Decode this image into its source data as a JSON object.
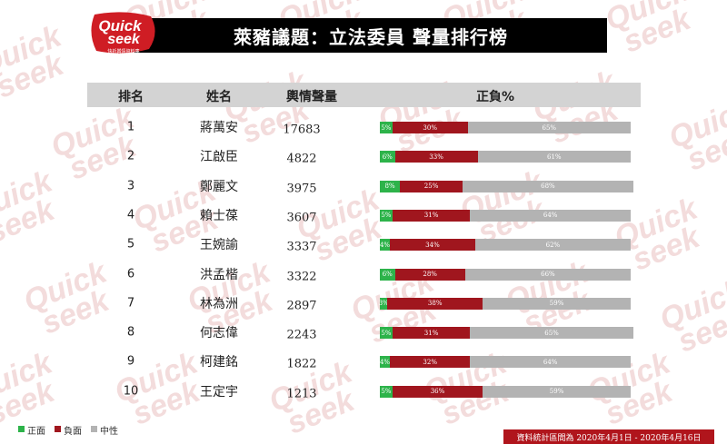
{
  "logo": {
    "top": "Quick",
    "bottom": "seek",
    "tagline": "快析輿情資料庫"
  },
  "title": "萊豬議題：立法委員 聲量排行榜",
  "headers": {
    "rank": "排名",
    "name": "姓名",
    "volume": "輿情聲量",
    "sentiment": "正負%"
  },
  "colors": {
    "positive": "#2db34a",
    "negative": "#a0161e",
    "neutral": "#b3b3b3",
    "header_bg": "#d3d3d3",
    "footer_bg": "#b0151c"
  },
  "legend": [
    {
      "label": "正面",
      "color": "#2db34a"
    },
    {
      "label": "負面",
      "color": "#a0161e"
    },
    {
      "label": "中性",
      "color": "#b3b3b3"
    }
  ],
  "footer": "資料統計區間為 2020年4月1日 - 2020年4月16日",
  "chart_data": {
    "type": "bar",
    "stacked": true,
    "normalized_percent": true,
    "categories": [
      "蔣萬安",
      "江啟臣",
      "鄭麗文",
      "賴士葆",
      "王婉諭",
      "洪孟楷",
      "林為洲",
      "何志偉",
      "柯建銘",
      "王定宇"
    ],
    "ranks": [
      "1",
      "2",
      "3",
      "4",
      "5",
      "6",
      "7",
      "8",
      "9",
      "10"
    ],
    "volume": [
      17683,
      4822,
      3975,
      3607,
      3337,
      3322,
      2897,
      2243,
      1822,
      1213
    ],
    "series": [
      {
        "name": "正面",
        "color": "#2db34a",
        "values": [
          5,
          6,
          8,
          5,
          4,
          6,
          3,
          5,
          4,
          5
        ]
      },
      {
        "name": "負面",
        "color": "#a0161e",
        "values": [
          30,
          33,
          25,
          31,
          34,
          28,
          38,
          31,
          32,
          36
        ]
      },
      {
        "name": "中性",
        "color": "#b3b3b3",
        "values": [
          65,
          61,
          68,
          64,
          62,
          66,
          59,
          65,
          64,
          59
        ]
      }
    ],
    "value_labels": [
      [
        "5%",
        "30%",
        "65%"
      ],
      [
        "6%",
        "33%",
        "61%"
      ],
      [
        "8%",
        "25%",
        "68%"
      ],
      [
        "5%",
        "31%",
        "64%"
      ],
      [
        "4%",
        "34%",
        "62%"
      ],
      [
        "6%",
        "28%",
        "66%"
      ],
      [
        "3%",
        "38%",
        "59%"
      ],
      [
        "5%",
        "31%",
        "65%"
      ],
      [
        "4%",
        "32%",
        "64%"
      ],
      [
        "5%",
        "36%",
        "59%"
      ]
    ],
    "title": "萊豬議題：立法委員 聲量排行榜"
  }
}
